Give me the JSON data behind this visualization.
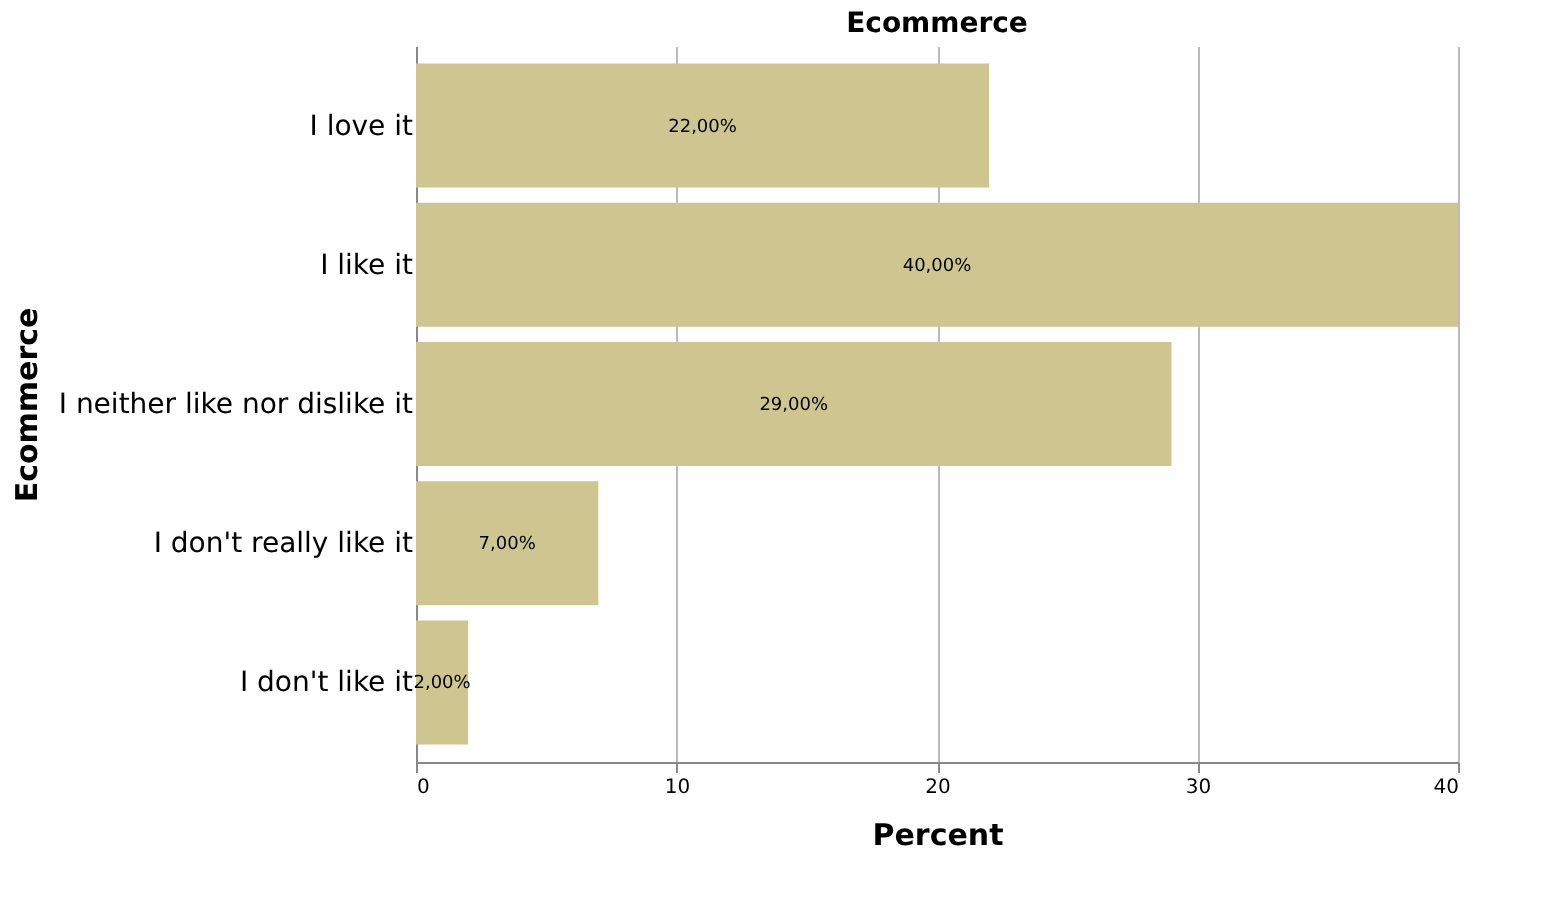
{
  "chart_data": {
    "type": "bar",
    "orientation": "horizontal",
    "title": "Ecommerce",
    "xlabel": "Percent",
    "ylabel": "Ecommerce",
    "categories": [
      "I love it",
      "I like it",
      "I neither like nor dislike it",
      "I don't really like it",
      "I don't like it"
    ],
    "values": [
      22,
      40,
      29,
      7,
      2
    ],
    "value_labels": [
      "22,00%",
      "40,00%",
      "29,00%",
      "7,00%",
      "2,00%"
    ],
    "color": "#cfc590",
    "xlim": [
      0,
      40
    ],
    "xticks": [
      0,
      10,
      20,
      30,
      40
    ],
    "grid": "x"
  }
}
